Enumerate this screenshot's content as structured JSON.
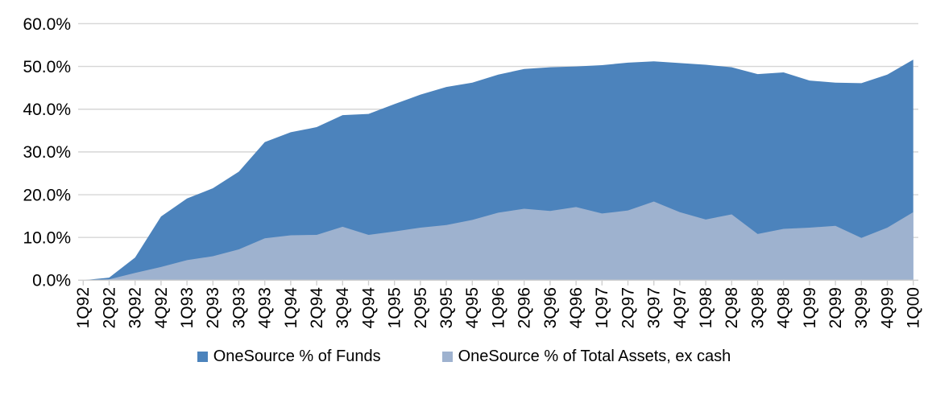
{
  "style": {
    "background": "#ffffff",
    "gridline_color": "#D6D6D6",
    "axis_color": "#CFCFCF",
    "text_color": "#000000",
    "accent_dark_blue": "#4C83BC",
    "accent_light_blue": "#9EB2CF"
  },
  "legend": {
    "position": "bottom"
  },
  "chart_data": {
    "type": "area",
    "title": "",
    "xlabel": "",
    "ylabel": "",
    "grid": true,
    "legend_position": "bottom",
    "ylim": [
      0,
      60
    ],
    "ytick_step": 10,
    "y_tick_labels": [
      "0.0%",
      "10.0%",
      "20.0%",
      "30.0%",
      "40.0%",
      "50.0%",
      "60.0%"
    ],
    "categories": [
      "1Q92",
      "2Q92",
      "3Q92",
      "4Q92",
      "1Q93",
      "2Q93",
      "3Q93",
      "4Q93",
      "1Q94",
      "2Q94",
      "3Q94",
      "4Q94",
      "1Q95",
      "2Q95",
      "3Q95",
      "4Q95",
      "1Q96",
      "2Q96",
      "3Q96",
      "4Q96",
      "1Q97",
      "2Q97",
      "3Q97",
      "4Q97",
      "1Q98",
      "2Q98",
      "3Q98",
      "4Q98",
      "1Q99",
      "2Q99",
      "3Q99",
      "4Q99",
      "1Q00"
    ],
    "series": [
      {
        "name": "OneSource % of Funds",
        "color": "#4C83BC",
        "values": [
          0,
          0.6,
          5.3,
          14.9,
          19.1,
          21.5,
          25.4,
          32.3,
          34.6,
          35.8,
          38.6,
          38.9,
          41.2,
          43.4,
          45.2,
          46.2,
          48.1,
          49.4,
          49.8,
          50.0,
          50.3,
          50.9,
          51.2,
          50.8,
          50.4,
          49.8,
          48.2,
          48.6,
          46.7,
          46.2,
          46.1,
          48.1,
          51.6
        ]
      },
      {
        "name": "OneSource % of Total Assets, ex cash",
        "color": "#9EB2CF",
        "values": [
          0,
          0.2,
          1.7,
          3.1,
          4.7,
          5.6,
          7.2,
          9.8,
          10.5,
          10.6,
          12.5,
          10.6,
          11.4,
          12.3,
          12.9,
          14.1,
          15.8,
          16.7,
          16.2,
          17.1,
          15.6,
          16.3,
          18.4,
          15.9,
          14.2,
          15.4,
          10.8,
          12.0,
          12.3,
          12.7,
          9.9,
          12.3,
          15.9
        ]
      }
    ]
  }
}
